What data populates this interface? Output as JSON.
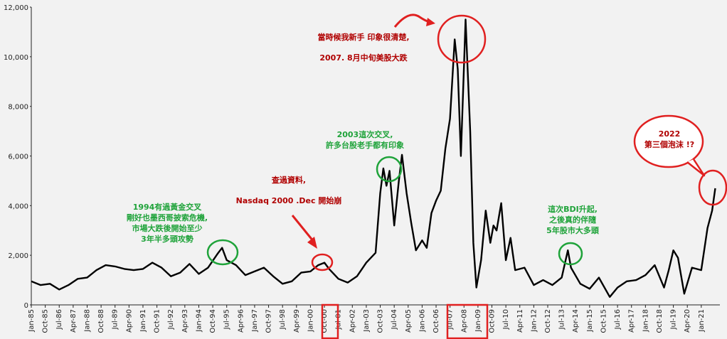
{
  "chart_data": {
    "type": "line",
    "title": "",
    "xlabel": "",
    "ylabel": "",
    "ylim": [
      0,
      12000
    ],
    "y_ticks": [
      "0",
      "2,000",
      "4,000",
      "6,000",
      "8,000",
      "10,000",
      "12,000"
    ],
    "y_tick_values": [
      0,
      2000,
      4000,
      6000,
      8000,
      10000,
      12000
    ],
    "x_tick_labels": [
      "Jan-85",
      "Oct-85",
      "Jul-86",
      "Apr-87",
      "Jan-88",
      "Oct-88",
      "Jul-89",
      "Apr-90",
      "Jan-91",
      "Oct-91",
      "Jul-92",
      "Apr-93",
      "Jan-94",
      "Oct-94",
      "Jul-95",
      "Apr-96",
      "Jan-97",
      "Oct-97",
      "Jul-98",
      "Apr-99",
      "Jan-00",
      "Oct-00",
      "Jul-01",
      "Apr-02",
      "Jan-03",
      "Oct-03",
      "Jul-04",
      "Apr-05",
      "Jan-06",
      "Oct-06",
      "Jul-07",
      "Apr-08",
      "Jan-09",
      "Oct-09",
      "Jul-10",
      "Apr-11",
      "Jan-12",
      "Oct-12",
      "Jul-13",
      "Apr-14",
      "Jan-15",
      "Oct-15",
      "Jul-16",
      "Apr-17",
      "Jan-18",
      "Oct-18",
      "Jul-19",
      "Apr-20",
      "Jan-21"
    ],
    "grid": false,
    "line_color": "#000000",
    "series": [
      {
        "name": "",
        "x_start": "Jan-85",
        "x_end": "Jan-22",
        "points": [
          [
            "Jan-85",
            950
          ],
          [
            "Jul-85",
            800
          ],
          [
            "Jan-86",
            850
          ],
          [
            "Jul-86",
            620
          ],
          [
            "Jan-87",
            800
          ],
          [
            "Jul-87",
            1050
          ],
          [
            "Jan-88",
            1100
          ],
          [
            "Jul-88",
            1400
          ],
          [
            "Jan-89",
            1600
          ],
          [
            "Jul-89",
            1550
          ],
          [
            "Jan-90",
            1450
          ],
          [
            "Jul-90",
            1400
          ],
          [
            "Jan-91",
            1450
          ],
          [
            "Jul-91",
            1700
          ],
          [
            "Jan-92",
            1500
          ],
          [
            "Jul-92",
            1150
          ],
          [
            "Jan-93",
            1300
          ],
          [
            "Jul-93",
            1650
          ],
          [
            "Jan-94",
            1250
          ],
          [
            "Jul-94",
            1500
          ],
          [
            "Jan-95",
            2050
          ],
          [
            "Apr-95",
            2300
          ],
          [
            "Jul-95",
            1800
          ],
          [
            "Jan-96",
            1600
          ],
          [
            "Jul-96",
            1200
          ],
          [
            "Jan-97",
            1350
          ],
          [
            "Jul-97",
            1500
          ],
          [
            "Jan-98",
            1150
          ],
          [
            "Jul-98",
            850
          ],
          [
            "Jan-99",
            950
          ],
          [
            "Jul-99",
            1300
          ],
          [
            "Jan-00",
            1350
          ],
          [
            "Jun-00",
            1600
          ],
          [
            "Oct-00",
            1700
          ],
          [
            "Jan-01",
            1450
          ],
          [
            "Jul-01",
            1050
          ],
          [
            "Jan-02",
            900
          ],
          [
            "Jul-02",
            1150
          ],
          [
            "Jan-03",
            1700
          ],
          [
            "Jul-03",
            2100
          ],
          [
            "Oct-03",
            4500
          ],
          [
            "Dec-03",
            5500
          ],
          [
            "Feb-04",
            4800
          ],
          [
            "Apr-04",
            5400
          ],
          [
            "Jul-04",
            3200
          ],
          [
            "Oct-04",
            5000
          ],
          [
            "Dec-04",
            6050
          ],
          [
            "Mar-05",
            4500
          ],
          [
            "Jun-05",
            3300
          ],
          [
            "Sep-05",
            2200
          ],
          [
            "Jan-06",
            2600
          ],
          [
            "Apr-06",
            2300
          ],
          [
            "Jul-06",
            3700
          ],
          [
            "Oct-06",
            4200
          ],
          [
            "Jan-07",
            4600
          ],
          [
            "Apr-07",
            6300
          ],
          [
            "Jul-07",
            7500
          ],
          [
            "Oct-07",
            10700
          ],
          [
            "Dec-07",
            9500
          ],
          [
            "Feb-08",
            6000
          ],
          [
            "May-08",
            11500
          ],
          [
            "Aug-08",
            7000
          ],
          [
            "Oct-08",
            2500
          ],
          [
            "Dec-08",
            700
          ],
          [
            "Mar-09",
            1800
          ],
          [
            "Jun-09",
            3800
          ],
          [
            "Sep-09",
            2500
          ],
          [
            "Nov-09",
            3200
          ],
          [
            "Jan-10",
            3000
          ],
          [
            "Apr-10",
            4100
          ],
          [
            "Jul-10",
            1800
          ],
          [
            "Oct-10",
            2700
          ],
          [
            "Jan-11",
            1400
          ],
          [
            "Jul-11",
            1500
          ],
          [
            "Jan-12",
            800
          ],
          [
            "Jul-12",
            1000
          ],
          [
            "Jan-13",
            800
          ],
          [
            "Jul-13",
            1100
          ],
          [
            "Nov-13",
            2200
          ],
          [
            "Jan-14",
            1500
          ],
          [
            "Jul-14",
            850
          ],
          [
            "Jan-15",
            650
          ],
          [
            "Jul-15",
            1100
          ],
          [
            "Feb-16",
            320
          ],
          [
            "Jul-16",
            700
          ],
          [
            "Jan-17",
            950
          ],
          [
            "Jul-17",
            1000
          ],
          [
            "Jan-18",
            1200
          ],
          [
            "Jul-18",
            1600
          ],
          [
            "Jan-19",
            700
          ],
          [
            "Apr-19",
            1400
          ],
          [
            "Jul-19",
            2200
          ],
          [
            "Oct-19",
            1900
          ],
          [
            "Feb-20",
            450
          ],
          [
            "Jul-20",
            1500
          ],
          [
            "Jan-21",
            1400
          ],
          [
            "May-21",
            3100
          ],
          [
            "Aug-21",
            3800
          ],
          [
            "Oct-21",
            4700
          ]
        ]
      }
    ],
    "annotations": [
      {
        "lines": [
          "1994有過黃金交叉",
          "剛好也墨西哥披索危機,",
          "市場大跌後開始至少",
          "3年半多頭攻勢"
        ],
        "color": "#1fa33a"
      },
      {
        "lines": [
          "查過資料,",
          "Nasdaq 2000 .Dec 開始崩"
        ],
        "color": "#b00000"
      },
      {
        "lines": [
          "2003這次交叉,",
          "許多台股老手都有印象"
        ],
        "color": "#1fa33a"
      },
      {
        "lines": [
          "當時候我新手 印象很清楚,",
          "2007. 8月中旬美股大跌"
        ],
        "color": "#b00000"
      },
      {
        "lines": [
          "這次BDI升起,",
          "之後真的伴隨",
          "5年股市大多頭"
        ],
        "color": "#1fa33a"
      },
      {
        "lines": [
          "2022",
          "第三個泡沫 !?"
        ],
        "color": "#b00000"
      }
    ],
    "highlight_colors": {
      "green": "#1fa33a",
      "red": "#e02020"
    }
  }
}
